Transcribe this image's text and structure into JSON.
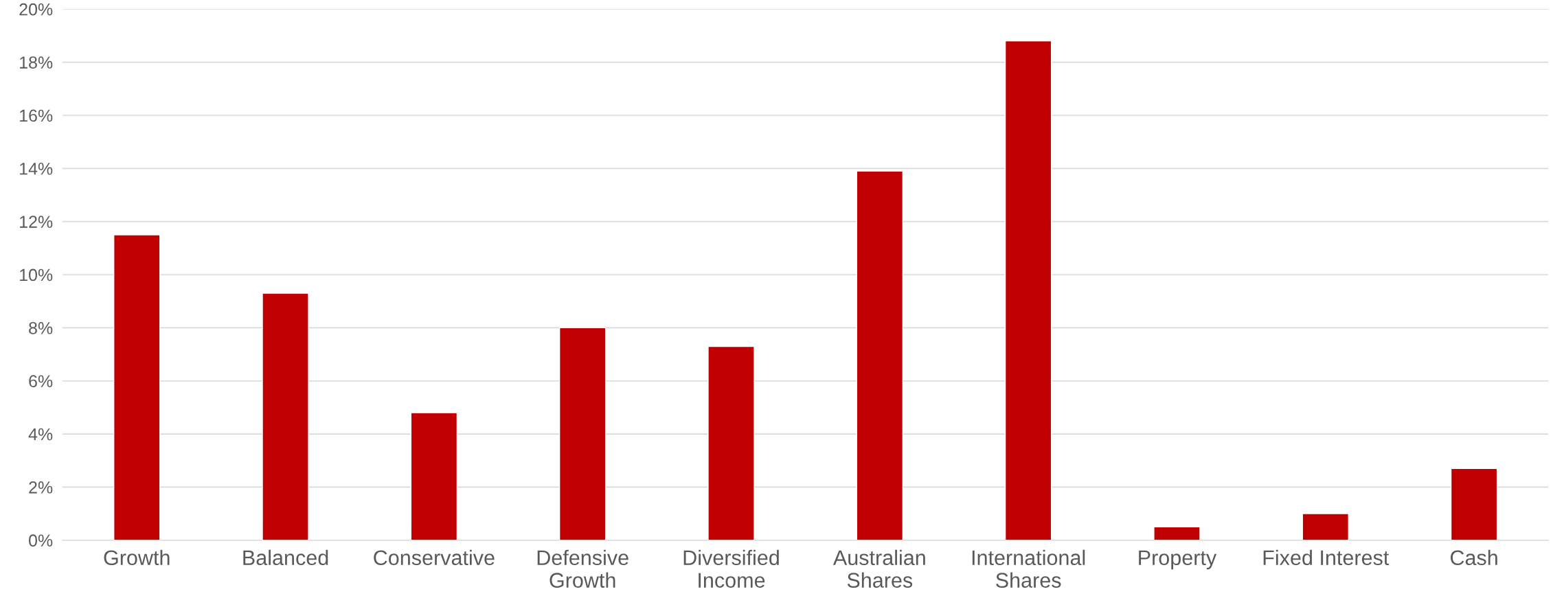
{
  "chart_data": {
    "type": "bar",
    "categories": [
      "Growth",
      "Balanced",
      "Conservative",
      "Defensive\nGrowth",
      "Diversified\nIncome",
      "Australian\nShares",
      "International\nShares",
      "Property",
      "Fixed Interest",
      "Cash"
    ],
    "values": [
      11.5,
      9.3,
      4.8,
      8.0,
      7.3,
      13.9,
      18.8,
      0.5,
      1.0,
      2.7
    ],
    "color": "#c00000",
    "ylim": [
      0,
      20
    ],
    "yticks": [
      {
        "value": 0,
        "label": "0%"
      },
      {
        "value": 2,
        "label": "2%"
      },
      {
        "value": 4,
        "label": "4%"
      },
      {
        "value": 6,
        "label": "6%"
      },
      {
        "value": 8,
        "label": "8%"
      },
      {
        "value": 10,
        "label": "10%"
      },
      {
        "value": 12,
        "label": "12%"
      },
      {
        "value": 14,
        "label": "14%"
      },
      {
        "value": 16,
        "label": "16%"
      },
      {
        "value": 18,
        "label": "18%"
      },
      {
        "value": 20,
        "label": "20%"
      }
    ],
    "grid": "y"
  }
}
